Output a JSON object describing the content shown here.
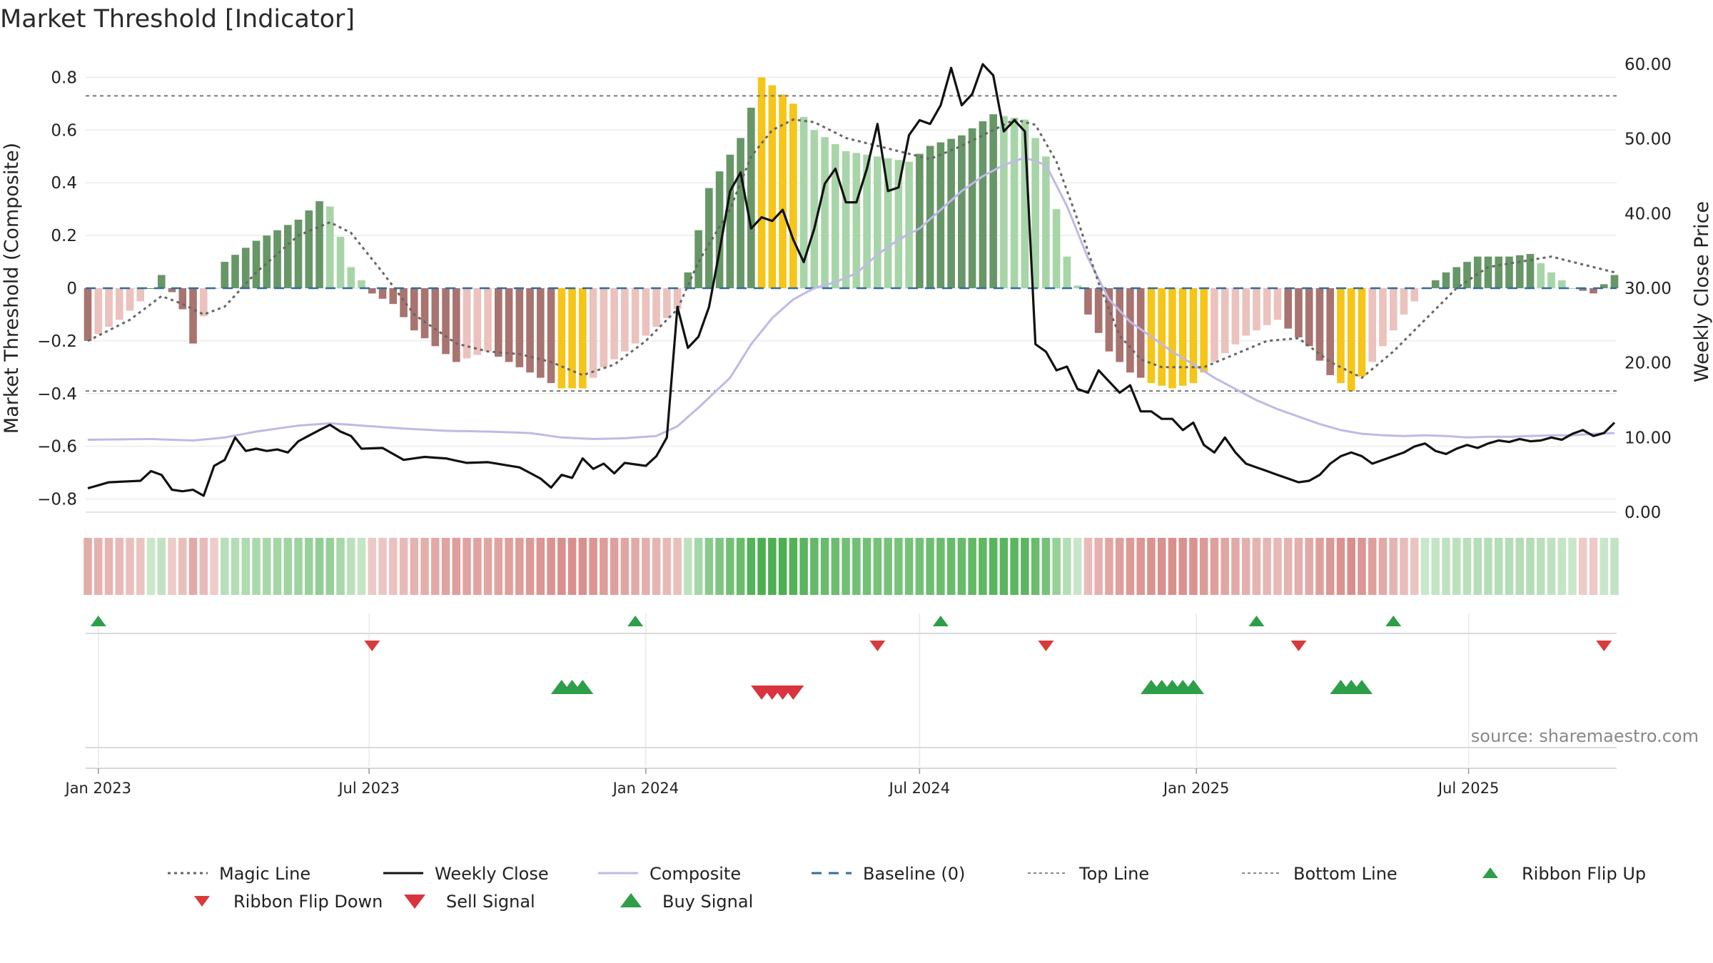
{
  "title": "Market Threshold [Indicator]",
  "source": "source: sharemaestro.com",
  "colors": {
    "bull_strong": "#679667",
    "bull_weak": "#a8d5a8",
    "bear_strong": "#a87470",
    "bear_weak": "#ebc2bd",
    "extreme": "#f5c518",
    "magic_line": "#666666",
    "weekly_close": "#111111",
    "composite_line": "#c0b9e6",
    "baseline": "#2e6f9e",
    "ref_line": "#777777",
    "buy": "#2e9e48",
    "sell": "#d9333f"
  },
  "chart_data": {
    "type": "bar",
    "title": "Market Threshold [Indicator]",
    "ylabel": "Market Threshold (Composite)",
    "y2label": "Weekly Close Price",
    "ylim": [
      -0.85,
      0.85
    ],
    "y2lim": [
      0,
      60
    ],
    "yticks": [
      -0.8,
      -0.6,
      -0.4,
      -0.2,
      0,
      0.2,
      0.4,
      0.6,
      0.8
    ],
    "yticklabels": [
      "−0.8",
      "−0.6",
      "−0.4",
      "−0.2",
      "0",
      "0.2",
      "0.4",
      "0.6",
      "0.8"
    ],
    "y2ticks": [
      0,
      10,
      20,
      30,
      40,
      50,
      60
    ],
    "y2ticklabels": [
      "0.00",
      "10.00",
      "20.00",
      "30.00",
      "40.00",
      "50.00",
      "60.00"
    ],
    "x_start": "2022-12-26",
    "weeks": 146,
    "xticks": [
      {
        "date": "2023-01-02",
        "label": "Jan 2023"
      },
      {
        "date": "2023-07-01",
        "label": "Jul 2023"
      },
      {
        "date": "2024-01-01",
        "label": "Jan 2024"
      },
      {
        "date": "2024-07-01",
        "label": "Jul 2024"
      },
      {
        "date": "2025-01-01",
        "label": "Jan 2025"
      },
      {
        "date": "2025-07-01",
        "label": "Jul 2025"
      }
    ],
    "top_line": 0.73,
    "bottom_line": -0.39,
    "composite_keys": [
      [
        0,
        -0.2
      ],
      [
        3,
        -0.12
      ],
      [
        5,
        -0.05
      ],
      [
        6,
        0.0
      ],
      [
        7,
        0.05
      ],
      [
        9,
        -0.08
      ],
      [
        10,
        -0.21
      ],
      [
        13,
        0.1
      ],
      [
        16,
        0.18
      ],
      [
        20,
        0.26
      ],
      [
        22,
        0.33
      ],
      [
        23,
        0.31
      ],
      [
        25,
        0.08
      ],
      [
        27,
        -0.02
      ],
      [
        29,
        -0.06
      ],
      [
        31,
        -0.16
      ],
      [
        33,
        -0.22
      ],
      [
        35,
        -0.28
      ],
      [
        38,
        -0.24
      ],
      [
        41,
        -0.3
      ],
      [
        45,
        -0.38
      ],
      [
        47,
        -0.38
      ],
      [
        49,
        -0.3
      ],
      [
        53,
        -0.18
      ],
      [
        56,
        -0.08
      ],
      [
        57,
        0.06
      ],
      [
        59,
        0.38
      ],
      [
        62,
        0.57
      ],
      [
        64,
        0.8
      ],
      [
        65,
        0.77
      ],
      [
        67,
        0.7
      ],
      [
        69,
        0.6
      ],
      [
        72,
        0.52
      ],
      [
        75,
        0.5
      ],
      [
        78,
        0.48
      ],
      [
        80,
        0.54
      ],
      [
        83,
        0.58
      ],
      [
        86,
        0.66
      ],
      [
        89,
        0.64
      ],
      [
        91,
        0.5
      ],
      [
        92,
        0.3
      ],
      [
        93,
        0.12
      ],
      [
        95,
        -0.1
      ],
      [
        97,
        -0.24
      ],
      [
        99,
        -0.32
      ],
      [
        101,
        -0.36
      ],
      [
        103,
        -0.38
      ],
      [
        105,
        -0.36
      ],
      [
        107,
        -0.28
      ],
      [
        110,
        -0.18
      ],
      [
        113,
        -0.12
      ],
      [
        116,
        -0.22
      ],
      [
        118,
        -0.33
      ],
      [
        120,
        -0.39
      ],
      [
        122,
        -0.28
      ],
      [
        125,
        -0.1
      ],
      [
        127,
        0.0
      ],
      [
        129,
        0.06
      ],
      [
        132,
        0.12
      ],
      [
        135,
        0.12
      ],
      [
        137,
        0.13
      ],
      [
        139,
        0.06
      ],
      [
        141,
        0.0
      ],
      [
        143,
        -0.02
      ],
      [
        145,
        0.05
      ]
    ],
    "extreme_ranges": [
      [
        45,
        47
      ],
      [
        64,
        67
      ],
      [
        101,
        106
      ],
      [
        119,
        121
      ]
    ],
    "magic_line_keys": [
      [
        0,
        -0.2
      ],
      [
        4,
        -0.12
      ],
      [
        7,
        -0.03
      ],
      [
        9,
        -0.06
      ],
      [
        11,
        -0.1
      ],
      [
        13,
        -0.07
      ],
      [
        16,
        0.06
      ],
      [
        20,
        0.2
      ],
      [
        23,
        0.25
      ],
      [
        25,
        0.21
      ],
      [
        28,
        0.06
      ],
      [
        31,
        -0.1
      ],
      [
        35,
        -0.21
      ],
      [
        38,
        -0.24
      ],
      [
        41,
        -0.25
      ],
      [
        44,
        -0.28
      ],
      [
        47,
        -0.33
      ],
      [
        50,
        -0.29
      ],
      [
        53,
        -0.2
      ],
      [
        56,
        -0.08
      ],
      [
        58,
        0.1
      ],
      [
        61,
        0.3
      ],
      [
        63,
        0.5
      ],
      [
        65,
        0.6
      ],
      [
        67,
        0.64
      ],
      [
        69,
        0.63
      ],
      [
        72,
        0.57
      ],
      [
        75,
        0.54
      ],
      [
        78,
        0.51
      ],
      [
        80,
        0.49
      ],
      [
        83,
        0.54
      ],
      [
        86,
        0.6
      ],
      [
        88,
        0.64
      ],
      [
        90,
        0.62
      ],
      [
        92,
        0.48
      ],
      [
        94,
        0.26
      ],
      [
        96,
        0.02
      ],
      [
        98,
        -0.18
      ],
      [
        100,
        -0.27
      ],
      [
        102,
        -0.3
      ],
      [
        104,
        -0.3
      ],
      [
        106,
        -0.3
      ],
      [
        109,
        -0.25
      ],
      [
        112,
        -0.2
      ],
      [
        115,
        -0.19
      ],
      [
        118,
        -0.28
      ],
      [
        121,
        -0.34
      ],
      [
        124,
        -0.24
      ],
      [
        127,
        -0.12
      ],
      [
        130,
        0.0
      ],
      [
        133,
        0.08
      ],
      [
        136,
        0.1
      ],
      [
        139,
        0.12
      ],
      [
        142,
        0.09
      ],
      [
        145,
        0.06
      ]
    ],
    "weekly_close_keys": [
      [
        0,
        3.2
      ],
      [
        2,
        4.0
      ],
      [
        5,
        4.2
      ],
      [
        6,
        5.5
      ],
      [
        7,
        5.0
      ],
      [
        8,
        3.0
      ],
      [
        9,
        2.8
      ],
      [
        10,
        3.0
      ],
      [
        11,
        2.2
      ],
      [
        12,
        6.2
      ],
      [
        13,
        7.0
      ],
      [
        14,
        10.0
      ],
      [
        15,
        8.2
      ],
      [
        16,
        8.5
      ],
      [
        17,
        8.2
      ],
      [
        18,
        8.4
      ],
      [
        19,
        8.0
      ],
      [
        20,
        9.5
      ],
      [
        22,
        11.0
      ],
      [
        23,
        11.7
      ],
      [
        24,
        10.8
      ],
      [
        25,
        10.2
      ],
      [
        26,
        8.5
      ],
      [
        28,
        8.6
      ],
      [
        30,
        7.0
      ],
      [
        32,
        7.4
      ],
      [
        34,
        7.2
      ],
      [
        36,
        6.6
      ],
      [
        38,
        6.7
      ],
      [
        41,
        6.0
      ],
      [
        43,
        4.5
      ],
      [
        44,
        3.3
      ],
      [
        45,
        5.0
      ],
      [
        46,
        4.6
      ],
      [
        47,
        7.2
      ],
      [
        48,
        5.8
      ],
      [
        49,
        6.5
      ],
      [
        50,
        5.2
      ],
      [
        51,
        6.6
      ],
      [
        52,
        6.4
      ],
      [
        53,
        6.2
      ],
      [
        54,
        7.5
      ],
      [
        55,
        10.0
      ],
      [
        56,
        27.5
      ],
      [
        57,
        22.0
      ],
      [
        58,
        23.5
      ],
      [
        59,
        27.5
      ],
      [
        60,
        35.0
      ],
      [
        61,
        43.0
      ],
      [
        62,
        45.5
      ],
      [
        63,
        38.0
      ],
      [
        64,
        39.5
      ],
      [
        65,
        39.0
      ],
      [
        66,
        40.5
      ],
      [
        67,
        36.5
      ],
      [
        68,
        33.5
      ],
      [
        69,
        38.0
      ],
      [
        70,
        44.0
      ],
      [
        71,
        46.0
      ],
      [
        72,
        41.5
      ],
      [
        73,
        41.5
      ],
      [
        74,
        46.0
      ],
      [
        75,
        52.0
      ],
      [
        76,
        43.0
      ],
      [
        77,
        43.5
      ],
      [
        78,
        50.5
      ],
      [
        79,
        52.5
      ],
      [
        80,
        52.0
      ],
      [
        81,
        54.5
      ],
      [
        82,
        59.5
      ],
      [
        83,
        54.5
      ],
      [
        84,
        56.0
      ],
      [
        85,
        60.0
      ],
      [
        86,
        58.5
      ],
      [
        87,
        51.0
      ],
      [
        88,
        52.5
      ],
      [
        89,
        51.0
      ],
      [
        90,
        22.5
      ],
      [
        91,
        21.5
      ],
      [
        92,
        19.0
      ],
      [
        93,
        19.5
      ],
      [
        94,
        16.5
      ],
      [
        95,
        16.0
      ],
      [
        96,
        19.0
      ],
      [
        97,
        17.5
      ],
      [
        98,
        16.0
      ],
      [
        99,
        17.0
      ],
      [
        100,
        13.5
      ],
      [
        101,
        13.5
      ],
      [
        102,
        12.5
      ],
      [
        103,
        12.5
      ],
      [
        104,
        11.0
      ],
      [
        105,
        12.0
      ],
      [
        106,
        9.0
      ],
      [
        107,
        8.0
      ],
      [
        108,
        10.0
      ],
      [
        109,
        8.0
      ],
      [
        110,
        6.5
      ],
      [
        111,
        6.0
      ],
      [
        112,
        5.5
      ],
      [
        113,
        5.0
      ],
      [
        114,
        4.5
      ],
      [
        115,
        4.0
      ],
      [
        116,
        4.2
      ],
      [
        117,
        5.0
      ],
      [
        118,
        6.5
      ],
      [
        119,
        7.5
      ],
      [
        120,
        8.0
      ],
      [
        121,
        7.5
      ],
      [
        122,
        6.5
      ],
      [
        123,
        7.0
      ],
      [
        124,
        7.5
      ],
      [
        125,
        8.0
      ],
      [
        126,
        8.8
      ],
      [
        127,
        9.2
      ],
      [
        128,
        8.2
      ],
      [
        129,
        7.8
      ],
      [
        130,
        8.5
      ],
      [
        131,
        9.0
      ],
      [
        132,
        8.6
      ],
      [
        133,
        9.2
      ],
      [
        134,
        9.6
      ],
      [
        135,
        9.4
      ],
      [
        136,
        9.8
      ],
      [
        137,
        9.5
      ],
      [
        138,
        9.6
      ],
      [
        139,
        10.0
      ],
      [
        140,
        9.7
      ],
      [
        141,
        10.5
      ],
      [
        142,
        11.0
      ],
      [
        143,
        10.2
      ],
      [
        144,
        10.6
      ],
      [
        145,
        12.0
      ]
    ],
    "composite_line_keys": [
      [
        0,
        9.7
      ],
      [
        6,
        9.8
      ],
      [
        10,
        9.6
      ],
      [
        13,
        10.0
      ],
      [
        16,
        10.8
      ],
      [
        20,
        11.6
      ],
      [
        23,
        11.9
      ],
      [
        26,
        11.6
      ],
      [
        30,
        11.2
      ],
      [
        34,
        10.9
      ],
      [
        38,
        10.8
      ],
      [
        42,
        10.6
      ],
      [
        45,
        10.0
      ],
      [
        48,
        9.8
      ],
      [
        51,
        9.9
      ],
      [
        54,
        10.2
      ],
      [
        56,
        11.5
      ],
      [
        58,
        14.0
      ],
      [
        61,
        18.0
      ],
      [
        63,
        22.5
      ],
      [
        65,
        26.0
      ],
      [
        67,
        28.5
      ],
      [
        69,
        30.0
      ],
      [
        71,
        30.8
      ],
      [
        73,
        32.0
      ],
      [
        75,
        34.5
      ],
      [
        77,
        36.5
      ],
      [
        79,
        38.0
      ],
      [
        81,
        40.5
      ],
      [
        83,
        43.0
      ],
      [
        85,
        45.0
      ],
      [
        87,
        46.5
      ],
      [
        89,
        47.5
      ],
      [
        91,
        46.5
      ],
      [
        93,
        41.0
      ],
      [
        95,
        34.0
      ],
      [
        97,
        28.5
      ],
      [
        99,
        25.5
      ],
      [
        101,
        23.5
      ],
      [
        103,
        21.5
      ],
      [
        105,
        19.8
      ],
      [
        107,
        18.0
      ],
      [
        109,
        16.5
      ],
      [
        111,
        15.0
      ],
      [
        113,
        13.8
      ],
      [
        115,
        12.8
      ],
      [
        117,
        11.8
      ],
      [
        119,
        11.0
      ],
      [
        121,
        10.5
      ],
      [
        123,
        10.3
      ],
      [
        125,
        10.2
      ],
      [
        127,
        10.3
      ],
      [
        129,
        10.2
      ],
      [
        131,
        10.0
      ],
      [
        133,
        10.1
      ],
      [
        135,
        10.1
      ],
      [
        137,
        10.2
      ],
      [
        139,
        10.3
      ],
      [
        141,
        10.3
      ],
      [
        143,
        10.5
      ],
      [
        145,
        10.6
      ]
    ],
    "ribbon_flip_up_weeks": [
      1,
      52,
      81,
      111,
      124
    ],
    "ribbon_flip_down_weeks": [
      27,
      75,
      91,
      115,
      144
    ],
    "buy_signal_groups": [
      [
        45,
        46,
        47
      ],
      [
        101,
        102,
        103,
        104,
        105
      ],
      [
        119,
        120,
        121
      ]
    ],
    "sell_signal_groups": [
      [
        64,
        65,
        66,
        67
      ]
    ],
    "legend": [
      {
        "label": "Magic Line",
        "type": "dotted"
      },
      {
        "label": "Weekly Close",
        "type": "solid"
      },
      {
        "label": "Composite",
        "type": "lav"
      },
      {
        "label": "Baseline (0)",
        "type": "dashed"
      },
      {
        "label": "Top Line",
        "type": "dotted-light"
      },
      {
        "label": "Bottom Line",
        "type": "dotted-light"
      },
      {
        "label": "Ribbon Flip Up",
        "type": "tri-up"
      },
      {
        "label": "Ribbon Flip Down",
        "type": "tri-down"
      },
      {
        "label": "Sell Signal",
        "type": "tri-down-lg"
      },
      {
        "label": "Buy Signal",
        "type": "tri-up-lg"
      }
    ]
  }
}
